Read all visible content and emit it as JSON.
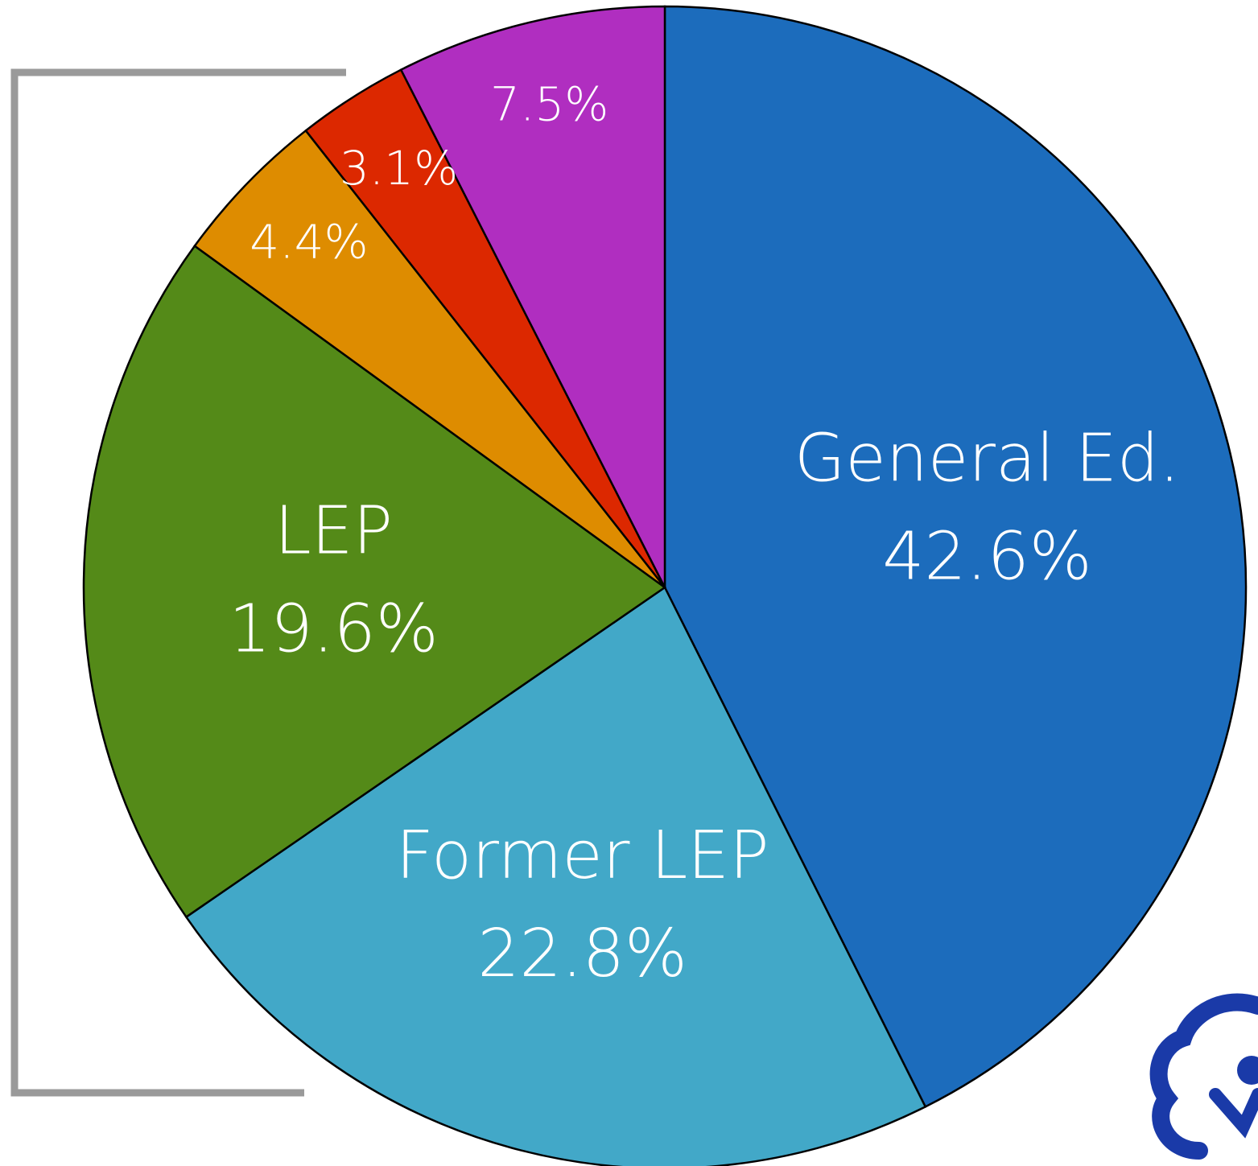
{
  "chart_data": {
    "type": "pie",
    "categories": [
      "General Ed.",
      "Former LEP",
      "LEP",
      null,
      null,
      null
    ],
    "values": [
      42.6,
      22.8,
      19.6,
      4.4,
      3.1,
      7.5
    ],
    "value_labels": [
      "42.6%",
      "22.8%",
      "19.6%",
      "4.4%",
      "3.1%",
      "7.5%"
    ],
    "colors": [
      "#1c6cbc",
      "#42a8c8",
      "#548a18",
      "#de8c00",
      "#dc2800",
      "#b02ec0"
    ]
  }
}
